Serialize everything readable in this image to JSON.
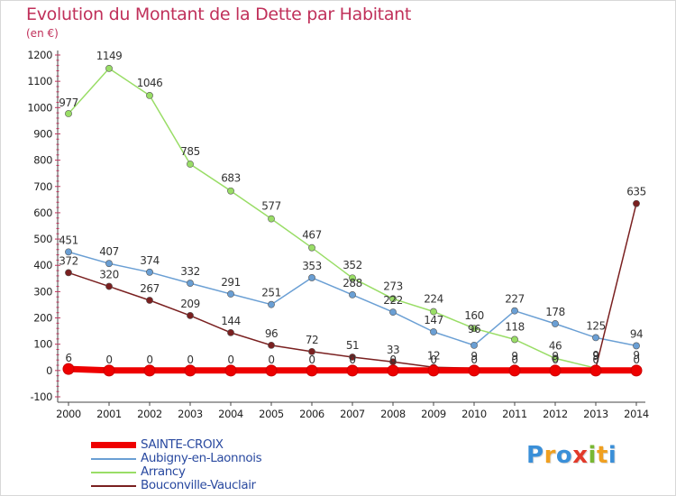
{
  "chart_data": {
    "type": "line",
    "title": "Evolution du Montant de la Dette par Habitant",
    "subtitle": "(en €)",
    "xlabel": "",
    "ylabel": "",
    "x": [
      "2000",
      "2001",
      "2002",
      "2003",
      "2004",
      "2005",
      "2006",
      "2007",
      "2008",
      "2009",
      "2010",
      "2011",
      "2012",
      "2013",
      "2014"
    ],
    "ylim": [
      -100,
      1200
    ],
    "yticks": [
      -100,
      0,
      100,
      200,
      300,
      400,
      500,
      600,
      700,
      800,
      900,
      1000,
      1100,
      1200
    ],
    "grid": false,
    "legend_position": "bottom-left",
    "series": [
      {
        "name": "SAINTE-CROIX",
        "color": "#ee0000",
        "values": [
          6,
          0,
          0,
          0,
          0,
          0,
          0,
          0,
          0,
          0,
          0,
          0,
          0,
          0,
          0
        ],
        "labels": [
          "6",
          "0",
          "0",
          "0",
          "0",
          "0",
          "0",
          "0",
          "0",
          "0",
          "0",
          "0",
          "0",
          "0",
          "0"
        ]
      },
      {
        "name": "Aubigny-en-Laonnois",
        "color": "#6a9fd4",
        "values": [
          451,
          407,
          374,
          332,
          291,
          251,
          353,
          288,
          222,
          147,
          96,
          227,
          178,
          125,
          94
        ],
        "labels": [
          "451",
          "407",
          "374",
          "332",
          "291",
          "251",
          "353",
          "288",
          "222",
          "147",
          "96",
          "227",
          "178",
          "125",
          "94"
        ]
      },
      {
        "name": "Arrancy",
        "color": "#99dd66",
        "values": [
          977,
          1149,
          1046,
          785,
          683,
          577,
          467,
          352,
          273,
          224,
          160,
          118,
          46,
          9,
          9
        ],
        "labels": [
          "977",
          "1149",
          "1046",
          "785",
          "683",
          "577",
          "467",
          "352",
          "273",
          "224",
          "160",
          "118",
          "46",
          "9",
          "9"
        ]
      },
      {
        "name": "Bouconville-Vauclair",
        "color": "#7a2020",
        "values": [
          372,
          320,
          267,
          209,
          144,
          96,
          72,
          51,
          33,
          12,
          9,
          9,
          9,
          9,
          635
        ],
        "labels": [
          "372",
          "320",
          "267",
          "209",
          "144",
          "96",
          "72",
          "51",
          "33",
          "12",
          "9",
          "9",
          "9",
          "9",
          "635"
        ]
      }
    ]
  },
  "legend": {
    "items": [
      {
        "label": "SAINTE-CROIX",
        "color": "#ee0000",
        "thickness": 6
      },
      {
        "label": "Aubigny-en-Laonnois",
        "color": "#6a9fd4",
        "thickness": 2
      },
      {
        "label": "Arrancy",
        "color": "#99dd66",
        "thickness": 2
      },
      {
        "label": "Bouconville-Vauclair",
        "color": "#7a2020",
        "thickness": 2
      }
    ]
  },
  "logo": {
    "letters": [
      "P",
      "r",
      "o",
      "x",
      "i",
      "t",
      "i"
    ],
    "colors": [
      "#3a8fd8",
      "#f0a020",
      "#3a8fd8",
      "#e23a2a",
      "#79b833",
      "#f0a020",
      "#3a8fd8"
    ]
  }
}
